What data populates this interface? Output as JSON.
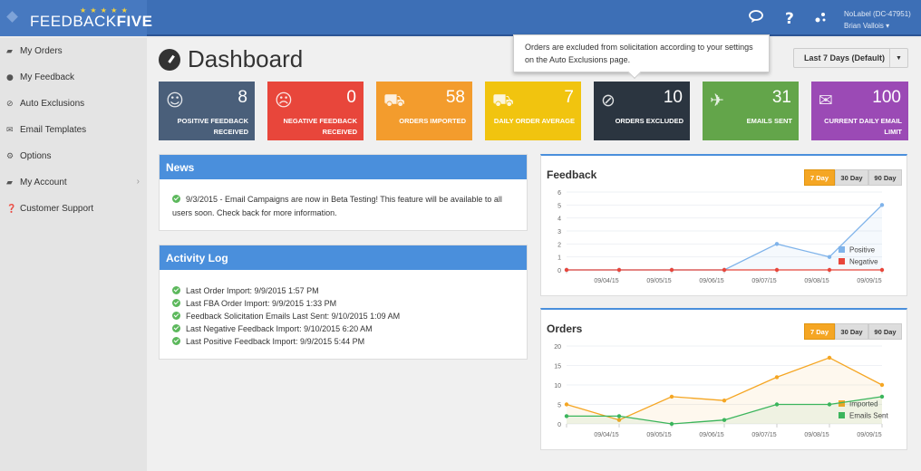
{
  "app": {
    "brand_light": "FEEDBACK",
    "brand_bold": "FIVE",
    "stars": "★ ★ ★ ★ ★"
  },
  "topbar": {
    "user_line1": "NoLabel (DC-47951)",
    "user_line2": "Brian Vallois ▾"
  },
  "sidebar": [
    {
      "label": "My Orders",
      "icon": "truck-icon"
    },
    {
      "label": "My Feedback",
      "icon": "comments-icon"
    },
    {
      "label": "Auto Exclusions",
      "icon": "ban-icon"
    },
    {
      "label": "Email Templates",
      "icon": "envelope-icon"
    },
    {
      "label": "Options",
      "icon": "gears-icon"
    },
    {
      "label": "My Account",
      "icon": "truck-icon"
    },
    {
      "label": "Customer Support",
      "icon": "question-icon"
    }
  ],
  "page_title": "Dashboard",
  "tooltip": "Orders are excluded from solicitation according to your settings on the Auto Exclusions page.",
  "date_range": {
    "label": "Last 7 Days (Default)"
  },
  "stats": [
    {
      "value": "8",
      "label_l1": "POSITIVE FEEDBACK",
      "label_l2": "RECEIVED",
      "color": "#4a5f7a",
      "icon": "smile-icon"
    },
    {
      "value": "0",
      "label_l1": "NEGATIVE FEEDBACK",
      "label_l2": "RECEIVED",
      "color": "#e8463b",
      "icon": "frown-icon"
    },
    {
      "value": "58",
      "label_l1": "ORDERS IMPORTED",
      "label_l2": "",
      "color": "#f39c2d",
      "icon": "truck-icon"
    },
    {
      "value": "7",
      "label_l1": "DAILY ORDER AVERAGE",
      "label_l2": "",
      "color": "#f1c40f",
      "icon": "truck-icon"
    },
    {
      "value": "10",
      "label_l1": "ORDERS EXCLUDED",
      "label_l2": "",
      "color": "#2b3540",
      "icon": "ban-icon"
    },
    {
      "value": "31",
      "label_l1": "EMAILS SENT",
      "label_l2": "",
      "color": "#63a54a",
      "icon": "plane-icon"
    },
    {
      "value": "100",
      "label_l1": "CURRENT DAILY EMAIL",
      "label_l2": "LIMIT",
      "color": "#9b4ab5",
      "icon": "envelope-icon"
    }
  ],
  "news": {
    "title": "News",
    "text": "9/3/2015 - Email Campaigns are now in Beta Testing! This feature will be available to all users soon. Check back for more information."
  },
  "activity": {
    "title": "Activity Log",
    "items": [
      "Last Order Import: 9/9/2015 1:57 PM",
      "Last FBA Order Import: 9/9/2015 1:33 PM",
      "Feedback Solicitation Emails Last Sent: 9/10/2015 1:09 AM",
      "Last Negative Feedback Import: 9/10/2015 6:20 AM",
      "Last Positive Feedback Import: 9/9/2015 5:44 PM"
    ]
  },
  "range_buttons": [
    "7 Day",
    "30 Day",
    "90 Day"
  ],
  "chart_data": [
    {
      "type": "line",
      "title": "Feedback",
      "x": [
        "",
        "09/04/15",
        "09/05/15",
        "09/06/15",
        "09/07/15",
        "09/08/15",
        "09/09/15"
      ],
      "ylim": [
        0,
        6
      ],
      "yticks": [
        0,
        1,
        2,
        3,
        4,
        5,
        6
      ],
      "grid": "horizontal",
      "legend": "right",
      "series": [
        {
          "name": "Positive",
          "color": "#7fb3ea",
          "values": [
            0,
            0,
            0,
            0,
            2,
            1,
            5
          ]
        },
        {
          "name": "Negative",
          "color": "#e8463b",
          "values": [
            0,
            0,
            0,
            0,
            0,
            0,
            0
          ]
        }
      ]
    },
    {
      "type": "line",
      "title": "Orders",
      "x": [
        "",
        "09/04/15",
        "09/05/15",
        "09/06/15",
        "09/07/15",
        "09/08/15",
        "09/09/15"
      ],
      "ylim": [
        0,
        20
      ],
      "yticks": [
        0,
        5,
        10,
        15,
        20
      ],
      "grid": "horizontal",
      "legend": "right",
      "series": [
        {
          "name": "Imported",
          "color": "#f5a623",
          "values": [
            5,
            1,
            7,
            6,
            12,
            17,
            10
          ]
        },
        {
          "name": "Emails Sent",
          "color": "#3bb55c",
          "values": [
            2,
            2,
            0,
            1,
            5,
            5,
            7
          ]
        }
      ]
    }
  ]
}
